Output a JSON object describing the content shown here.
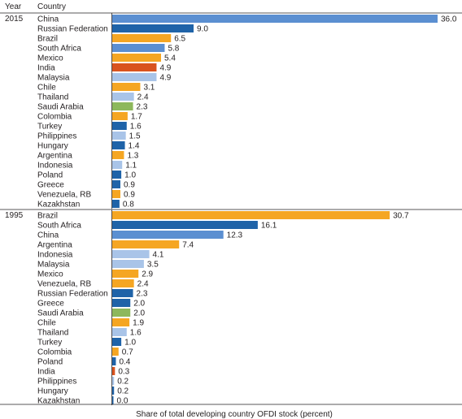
{
  "chart_data": {
    "type": "bar",
    "orientation": "horizontal",
    "header": {
      "year_col": "Year",
      "country_col": "Country"
    },
    "xlabel": "Share of total developing country OFDI stock (percent)",
    "xlim": [
      0,
      36.0
    ],
    "groups": [
      {
        "year": "2015",
        "bars": [
          {
            "country": "China",
            "value": 36.0,
            "value_label": "36.0",
            "color": "#5b8fd1"
          },
          {
            "country": "Russian Federation",
            "value": 9.0,
            "value_label": "9.0",
            "color": "#1f63a8"
          },
          {
            "country": "Brazil",
            "value": 6.5,
            "value_label": "6.5",
            "color": "#f5a623"
          },
          {
            "country": "South Africa",
            "value": 5.8,
            "value_label": "5.8",
            "color": "#5b8fd1"
          },
          {
            "country": "Mexico",
            "value": 5.4,
            "value_label": "5.4",
            "color": "#f5a623"
          },
          {
            "country": "India",
            "value": 4.9,
            "value_label": "4.9",
            "color": "#d9531e"
          },
          {
            "country": "Malaysia",
            "value": 4.9,
            "value_label": "4.9",
            "color": "#a9c4e8"
          },
          {
            "country": "Chile",
            "value": 3.1,
            "value_label": "3.1",
            "color": "#f5a623"
          },
          {
            "country": "Thailand",
            "value": 2.4,
            "value_label": "2.4",
            "color": "#a9c4e8"
          },
          {
            "country": "Saudi Arabia",
            "value": 2.3,
            "value_label": "2.3",
            "color": "#8db85c"
          },
          {
            "country": "Colombia",
            "value": 1.7,
            "value_label": "1.7",
            "color": "#f5a623"
          },
          {
            "country": "Turkey",
            "value": 1.6,
            "value_label": "1.6",
            "color": "#1f63a8"
          },
          {
            "country": "Philippines",
            "value": 1.5,
            "value_label": "1.5",
            "color": "#a9c4e8"
          },
          {
            "country": "Hungary",
            "value": 1.4,
            "value_label": "1.4",
            "color": "#1f63a8"
          },
          {
            "country": "Argentina",
            "value": 1.3,
            "value_label": "1.3",
            "color": "#f5a623"
          },
          {
            "country": "Indonesia",
            "value": 1.1,
            "value_label": "1.1",
            "color": "#a9c4e8"
          },
          {
            "country": "Poland",
            "value": 1.0,
            "value_label": "1.0",
            "color": "#1f63a8"
          },
          {
            "country": "Greece",
            "value": 0.9,
            "value_label": "0.9",
            "color": "#1f63a8"
          },
          {
            "country": "Venezuela, RB",
            "value": 0.9,
            "value_label": "0.9",
            "color": "#f5a623"
          },
          {
            "country": "Kazakhstan",
            "value": 0.8,
            "value_label": "0.8",
            "color": "#1f63a8"
          }
        ]
      },
      {
        "year": "1995",
        "bars": [
          {
            "country": "Brazil",
            "value": 30.7,
            "value_label": "30.7",
            "color": "#f5a623"
          },
          {
            "country": "South Africa",
            "value": 16.1,
            "value_label": "16.1",
            "color": "#1f63a8"
          },
          {
            "country": "China",
            "value": 12.3,
            "value_label": "12.3",
            "color": "#5b8fd1"
          },
          {
            "country": "Argentina",
            "value": 7.4,
            "value_label": "7.4",
            "color": "#f5a623"
          },
          {
            "country": "Indonesia",
            "value": 4.1,
            "value_label": "4.1",
            "color": "#a9c4e8"
          },
          {
            "country": "Malaysia",
            "value": 3.5,
            "value_label": "3.5",
            "color": "#a9c4e8"
          },
          {
            "country": "Mexico",
            "value": 2.9,
            "value_label": "2.9",
            "color": "#f5a623"
          },
          {
            "country": "Venezuela, RB",
            "value": 2.4,
            "value_label": "2.4",
            "color": "#f5a623"
          },
          {
            "country": "Russian Federation",
            "value": 2.3,
            "value_label": "2.3",
            "color": "#1f63a8"
          },
          {
            "country": "Greece",
            "value": 2.0,
            "value_label": "2.0",
            "color": "#1f63a8"
          },
          {
            "country": "Saudi Arabia",
            "value": 2.0,
            "value_label": "2.0",
            "color": "#8db85c"
          },
          {
            "country": "Chile",
            "value": 1.9,
            "value_label": "1.9",
            "color": "#f5a623"
          },
          {
            "country": "Thailand",
            "value": 1.6,
            "value_label": "1.6",
            "color": "#a9c4e8"
          },
          {
            "country": "Turkey",
            "value": 1.0,
            "value_label": "1.0",
            "color": "#1f63a8"
          },
          {
            "country": "Colombia",
            "value": 0.7,
            "value_label": "0.7",
            "color": "#f5a623"
          },
          {
            "country": "Poland",
            "value": 0.4,
            "value_label": "0.4",
            "color": "#1f63a8"
          },
          {
            "country": "India",
            "value": 0.3,
            "value_label": "0.3",
            "color": "#d9531e"
          },
          {
            "country": "Philippines",
            "value": 0.2,
            "value_label": "0.2",
            "color": "#a9c4e8"
          },
          {
            "country": "Hungary",
            "value": 0.2,
            "value_label": "0.2",
            "color": "#1f63a8"
          },
          {
            "country": "Kazakhstan",
            "value": 0.0,
            "value_label": "0.0",
            "color": "#1f63a8"
          }
        ]
      }
    ],
    "grid": false,
    "legend": "none"
  }
}
